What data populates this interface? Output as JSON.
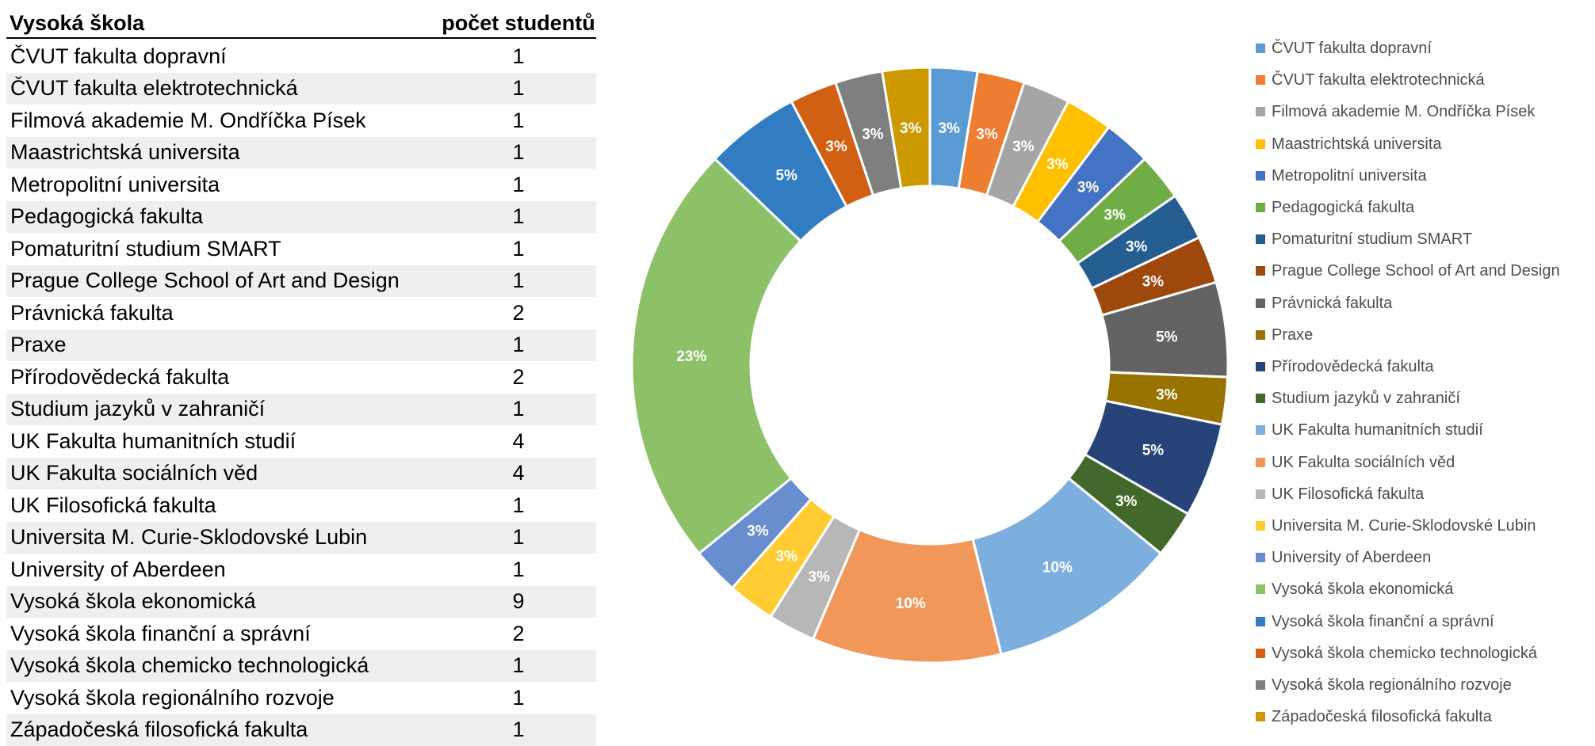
{
  "table": {
    "header": {
      "school": "Vysoká škola",
      "count": "počet studentů"
    },
    "rows": [
      {
        "school": "ČVUT fakulta dopravní",
        "count": "1"
      },
      {
        "school": "ČVUT fakulta elektrotechnická",
        "count": "1"
      },
      {
        "school": "Filmová akademie M. Ondříčka Písek",
        "count": "1"
      },
      {
        "school": "Maastrichtská universita",
        "count": "1"
      },
      {
        "school": "Metropolitní universita",
        "count": "1"
      },
      {
        "school": "Pedagogická fakulta",
        "count": "1"
      },
      {
        "school": "Pomaturitní studium SMART",
        "count": "1"
      },
      {
        "school": "Prague College School of Art and Design",
        "count": "1"
      },
      {
        "school": "Právnická fakulta",
        "count": "2"
      },
      {
        "school": "Praxe",
        "count": "1"
      },
      {
        "school": "Přírodovědecká fakulta",
        "count": "2"
      },
      {
        "school": "Studium jazyků v zahraničí",
        "count": "1"
      },
      {
        "school": "UK Fakulta humanitních studií",
        "count": "4"
      },
      {
        "school": "UK Fakulta sociálních věd",
        "count": "4"
      },
      {
        "school": "UK Filosofická fakulta",
        "count": "1"
      },
      {
        "school": "Universita M. Curie-Sklodovské Lubin",
        "count": "1"
      },
      {
        "school": "University of Aberdeen",
        "count": "1"
      },
      {
        "school": "Vysoká škola ekonomická",
        "count": "9"
      },
      {
        "school": "Vysoká škola finanční a správní",
        "count": "2"
      },
      {
        "school": "Vysoká škola chemicko technologická",
        "count": "1"
      },
      {
        "school": "Vysoká škola regionálního rozvoje",
        "count": "1"
      },
      {
        "school": "Západočeská filosofická fakulta",
        "count": "1"
      }
    ]
  },
  "chart_data": {
    "type": "pie",
    "subtype": "doughnut",
    "categories": [
      "ČVUT fakulta dopravní",
      "ČVUT fakulta elektrotechnická",
      "Filmová akademie M. Ondříčka Písek",
      "Maastrichtská universita",
      "Metropolitní universita",
      "Pedagogická fakulta",
      "Pomaturitní studium SMART",
      "Prague College School of Art and Design",
      "Právnická fakulta",
      "Praxe",
      "Přírodovědecká fakulta",
      "Studium jazyků v zahraničí",
      "UK Fakulta humanitních studií",
      "UK Fakulta sociálních věd",
      "UK Filosofická fakulta",
      "Universita M. Curie-Sklodovské Lubin",
      "University of Aberdeen",
      "Vysoká škola ekonomická",
      "Vysoká škola finanční a správní",
      "Vysoká škola chemicko technologická",
      "Vysoká škola regionálního rozvoje",
      "Západočeská filosofická fakulta"
    ],
    "values": [
      1,
      1,
      1,
      1,
      1,
      1,
      1,
      1,
      2,
      1,
      2,
      1,
      4,
      4,
      1,
      1,
      1,
      9,
      2,
      1,
      1,
      1
    ],
    "labels": [
      "3%",
      "3%",
      "3%",
      "3%",
      "3%",
      "3%",
      "3%",
      "3%",
      "5%",
      "3%",
      "5%",
      "3%",
      "10%",
      "10%",
      "3%",
      "3%",
      "3%",
      "23%",
      "5%",
      "3%",
      "3%",
      "3%"
    ],
    "colors": [
      "#5b9bd5",
      "#ed7d31",
      "#a5a5a5",
      "#ffc000",
      "#4472c4",
      "#70ad47",
      "#255e91",
      "#9e480e",
      "#636363",
      "#997300",
      "#264478",
      "#43682b",
      "#7cafdd",
      "#f1975a",
      "#b7b7b7",
      "#ffcd33",
      "#698ed0",
      "#8cc168",
      "#327dc2",
      "#d26012",
      "#7f7f7f",
      "#cc9a00"
    ],
    "legend_position": "right"
  }
}
